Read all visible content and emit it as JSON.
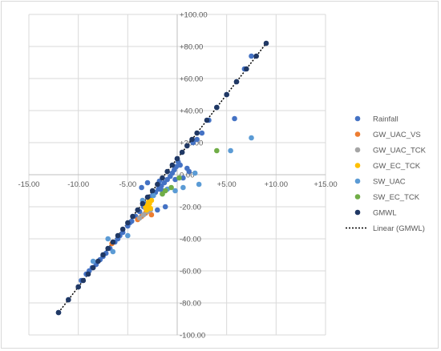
{
  "chart_data": {
    "type": "scatter",
    "title": "",
    "xlabel": "",
    "ylabel": "",
    "xlim": [
      -15,
      15
    ],
    "ylim": [
      -100,
      100
    ],
    "grid": true,
    "x_ticks": [
      "-15.00",
      "-10.00",
      "-5.00",
      "0.00",
      "+5.00",
      "+10.00",
      "+15.00"
    ],
    "y_ticks": [
      "+100.00",
      "+80.00",
      "+60.00",
      "+40.00",
      "+20.00",
      "0.00",
      "-20.00",
      "-40.00",
      "-60.00",
      "-80.00",
      "-100.00"
    ],
    "legend_position": "right",
    "series": [
      {
        "name": "Rainfall",
        "color": "#4472c4",
        "points": [
          [
            -12.0,
            -86
          ],
          [
            -11.0,
            -78
          ],
          [
            -10.0,
            -70
          ],
          [
            -9.7,
            -66
          ],
          [
            -9.2,
            -62
          ],
          [
            -8.9,
            -60
          ],
          [
            -8.6,
            -58
          ],
          [
            -8.2,
            -56
          ],
          [
            -7.8,
            -53
          ],
          [
            -7.5,
            -51
          ],
          [
            -7.2,
            -49
          ],
          [
            -6.8,
            -46
          ],
          [
            -6.3,
            -42
          ],
          [
            -6.0,
            -40
          ],
          [
            -5.8,
            -38
          ],
          [
            -5.5,
            -36
          ],
          [
            -5.0,
            -32
          ],
          [
            -4.6,
            -29
          ],
          [
            -4.2,
            -26
          ],
          [
            -3.8,
            -23
          ],
          [
            -3.4,
            -20
          ],
          [
            -3.1,
            -18
          ],
          [
            -2.8,
            -15
          ],
          [
            -2.5,
            -13
          ],
          [
            -2.2,
            -11
          ],
          [
            -1.9,
            -9
          ],
          [
            -1.6,
            -7
          ],
          [
            -1.3,
            -5
          ],
          [
            -1.0,
            -3
          ],
          [
            -0.7,
            -1
          ],
          [
            -0.5,
            1
          ],
          [
            -0.3,
            3
          ],
          [
            -0.1,
            5
          ],
          [
            0.1,
            8
          ],
          [
            0.0,
            10
          ],
          [
            -0.2,
            -3
          ],
          [
            0.3,
            6
          ],
          [
            0.6,
            -2
          ],
          [
            1.0,
            4
          ],
          [
            1.2,
            2
          ],
          [
            1.6,
            20
          ],
          [
            2.0,
            22
          ],
          [
            2.5,
            26
          ],
          [
            3.2,
            34
          ],
          [
            4.0,
            42
          ],
          [
            5.0,
            50
          ],
          [
            5.8,
            35
          ],
          [
            6.0,
            58
          ],
          [
            6.8,
            66
          ],
          [
            7.5,
            74
          ],
          [
            -1.2,
            -20
          ],
          [
            -2.0,
            -22
          ],
          [
            -2.4,
            -12
          ],
          [
            -1.8,
            -4
          ],
          [
            -3.0,
            -5
          ],
          [
            -4.8,
            -30
          ],
          [
            -3.6,
            -8
          ],
          [
            -1.5,
            -10
          ]
        ]
      },
      {
        "name": "GW_UAC_VS",
        "color": "#ed7d31",
        "points": [
          [
            -6.6,
            -43
          ],
          [
            -3.6,
            -26
          ],
          [
            -3.2,
            -24
          ],
          [
            -2.8,
            -22
          ],
          [
            -3.0,
            -20
          ],
          [
            -4.0,
            -28
          ],
          [
            -2.6,
            -25
          ]
        ]
      },
      {
        "name": "GW_UAC_TCK",
        "color": "#a5a5a5",
        "points": [
          [
            -3.4,
            -25
          ],
          [
            -3.0,
            -23
          ],
          [
            -2.7,
            -22
          ],
          [
            -3.2,
            -21
          ],
          [
            -3.8,
            -27
          ]
        ]
      },
      {
        "name": "GW_EC_TCK",
        "color": "#ffc000",
        "points": [
          [
            -3.2,
            -20
          ],
          [
            -3.0,
            -19
          ],
          [
            -2.8,
            -18
          ],
          [
            -2.9,
            -17
          ],
          [
            -2.6,
            -16
          ],
          [
            -3.1,
            -22
          ],
          [
            -2.7,
            -21
          ]
        ]
      },
      {
        "name": "SW_UAC",
        "color": "#5b9bd5",
        "points": [
          [
            7.5,
            23
          ],
          [
            5.4,
            15
          ],
          [
            2.2,
            -6
          ],
          [
            1.8,
            1
          ],
          [
            -0.2,
            -10
          ],
          [
            -5.0,
            -38
          ],
          [
            -2.4,
            -13
          ],
          [
            -1.5,
            -12
          ],
          [
            -3.5,
            -16
          ],
          [
            -1.0,
            -9
          ],
          [
            -6.5,
            -48
          ],
          [
            -7.0,
            -40
          ],
          [
            -8.5,
            -54
          ],
          [
            0.6,
            -8
          ]
        ]
      },
      {
        "name": "SW_EC_TCK",
        "color": "#70ad47",
        "points": [
          [
            4.0,
            15
          ],
          [
            0.2,
            -2
          ],
          [
            -1.2,
            -10
          ],
          [
            -0.6,
            -8
          ],
          [
            -1.5,
            -12
          ]
        ]
      },
      {
        "name": "GMWL",
        "color": "#203864",
        "points": [
          [
            -12,
            -86
          ],
          [
            -11,
            -78
          ],
          [
            -10,
            -70
          ],
          [
            -9.5,
            -66
          ],
          [
            -9,
            -62
          ],
          [
            -8.5,
            -58
          ],
          [
            -8,
            -54
          ],
          [
            -7.5,
            -50
          ],
          [
            -7,
            -46
          ],
          [
            -6.5,
            -42
          ],
          [
            -6,
            -38
          ],
          [
            -5.5,
            -34
          ],
          [
            -5,
            -30
          ],
          [
            -4.5,
            -26
          ],
          [
            -4,
            -22
          ],
          [
            -3.5,
            -18
          ],
          [
            -3,
            -14
          ],
          [
            -2.5,
            -10
          ],
          [
            -2,
            -6
          ],
          [
            -1.5,
            -2
          ],
          [
            -1,
            2
          ],
          [
            -0.5,
            6
          ],
          [
            0,
            10
          ],
          [
            0.5,
            14
          ],
          [
            1,
            18
          ],
          [
            1.5,
            22
          ],
          [
            2,
            26
          ],
          [
            3,
            34
          ],
          [
            4,
            42
          ],
          [
            5,
            50
          ],
          [
            6,
            58
          ],
          [
            7,
            66
          ],
          [
            8,
            74
          ],
          [
            9,
            82
          ]
        ]
      }
    ],
    "trendline": {
      "name": "Linear (GMWL)",
      "color": "#000000",
      "slope": 8,
      "intercept": 10,
      "x_range": [
        -12,
        9
      ]
    }
  }
}
